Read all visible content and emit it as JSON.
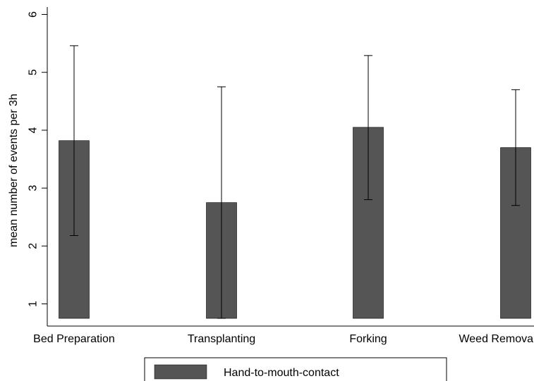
{
  "chart_data": {
    "type": "bar",
    "categories": [
      "Bed Preparation",
      "Transplanting",
      "Forking",
      "Weed Removal"
    ],
    "series": [
      {
        "name": "Hand-to-mouth-contact",
        "values": [
          3.82,
          2.75,
          4.05,
          3.7
        ],
        "error_low": [
          2.18,
          0.75,
          2.8,
          2.7
        ],
        "error_high": [
          5.46,
          4.75,
          5.29,
          4.7
        ],
        "color": "#555555"
      }
    ],
    "title": "",
    "xlabel": "",
    "ylabel": "mean number of events per 3h",
    "ylim": [
      0.75,
      6.15
    ],
    "bar_base": 0.75,
    "yticks": [
      1,
      2,
      3,
      4,
      5,
      6
    ],
    "grid": false,
    "legend_position": "bottom"
  }
}
